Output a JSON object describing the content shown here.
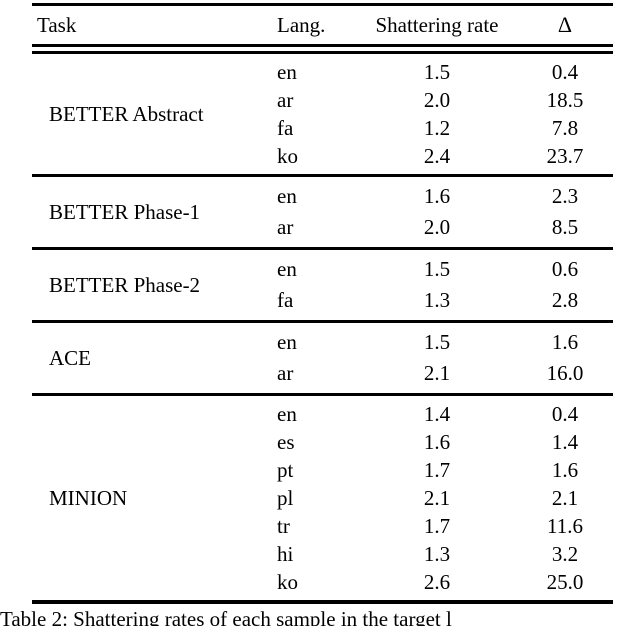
{
  "table": {
    "header": {
      "task": "Task",
      "lang": "Lang.",
      "rate": "Shattering rate",
      "delta": "Δ"
    },
    "sections": [
      {
        "task": "BETTER Abstract",
        "rows": [
          {
            "lang": "en",
            "rate": "1.5",
            "delta": "0.4"
          },
          {
            "lang": "ar",
            "rate": "2.0",
            "delta": "18.5"
          },
          {
            "lang": "fa",
            "rate": "1.2",
            "delta": "7.8"
          },
          {
            "lang": "ko",
            "rate": "2.4",
            "delta": "23.7"
          }
        ]
      },
      {
        "task": "BETTER Phase-1",
        "rows": [
          {
            "lang": "en",
            "rate": "1.6",
            "delta": "2.3"
          },
          {
            "lang": "ar",
            "rate": "2.0",
            "delta": "8.5"
          }
        ]
      },
      {
        "task": "BETTER Phase-2",
        "rows": [
          {
            "lang": "en",
            "rate": "1.5",
            "delta": "0.6"
          },
          {
            "lang": "fa",
            "rate": "1.3",
            "delta": "2.8"
          }
        ]
      },
      {
        "task": "ACE",
        "rows": [
          {
            "lang": "en",
            "rate": "1.5",
            "delta": "1.6"
          },
          {
            "lang": "ar",
            "rate": "2.1",
            "delta": "16.0"
          }
        ]
      },
      {
        "task": "MINION",
        "rows": [
          {
            "lang": "en",
            "rate": "1.4",
            "delta": "0.4"
          },
          {
            "lang": "es",
            "rate": "1.6",
            "delta": "1.4"
          },
          {
            "lang": "pt",
            "rate": "1.7",
            "delta": "1.6"
          },
          {
            "lang": "pl",
            "rate": "2.1",
            "delta": "2.1"
          },
          {
            "lang": "tr",
            "rate": "1.7",
            "delta": "11.6"
          },
          {
            "lang": "hi",
            "rate": "1.3",
            "delta": "3.2"
          },
          {
            "lang": "ko",
            "rate": "2.6",
            "delta": "25.0"
          }
        ]
      }
    ]
  },
  "caption": "Table 2: Shattering rates of each sample in the target l",
  "colors": {
    "text": "#000000",
    "background": "#ffffff",
    "rule": "#000000"
  },
  "chart_data": {
    "type": "table",
    "columns": [
      "Task",
      "Lang.",
      "Shattering rate",
      "Δ"
    ],
    "rows": [
      [
        "BETTER Abstract",
        "en",
        1.5,
        0.4
      ],
      [
        "BETTER Abstract",
        "ar",
        2.0,
        18.5
      ],
      [
        "BETTER Abstract",
        "fa",
        1.2,
        7.8
      ],
      [
        "BETTER Abstract",
        "ko",
        2.4,
        23.7
      ],
      [
        "BETTER Phase-1",
        "en",
        1.6,
        2.3
      ],
      [
        "BETTER Phase-1",
        "ar",
        2.0,
        8.5
      ],
      [
        "BETTER Phase-2",
        "en",
        1.5,
        0.6
      ],
      [
        "BETTER Phase-2",
        "fa",
        1.3,
        2.8
      ],
      [
        "ACE",
        "en",
        1.5,
        1.6
      ],
      [
        "ACE",
        "ar",
        2.1,
        16.0
      ],
      [
        "MINION",
        "en",
        1.4,
        0.4
      ],
      [
        "MINION",
        "es",
        1.6,
        1.4
      ],
      [
        "MINION",
        "pt",
        1.7,
        1.6
      ],
      [
        "MINION",
        "pl",
        2.1,
        2.1
      ],
      [
        "MINION",
        "tr",
        1.7,
        11.6
      ],
      [
        "MINION",
        "hi",
        1.3,
        3.2
      ],
      [
        "MINION",
        "ko",
        2.6,
        25.0
      ]
    ]
  }
}
